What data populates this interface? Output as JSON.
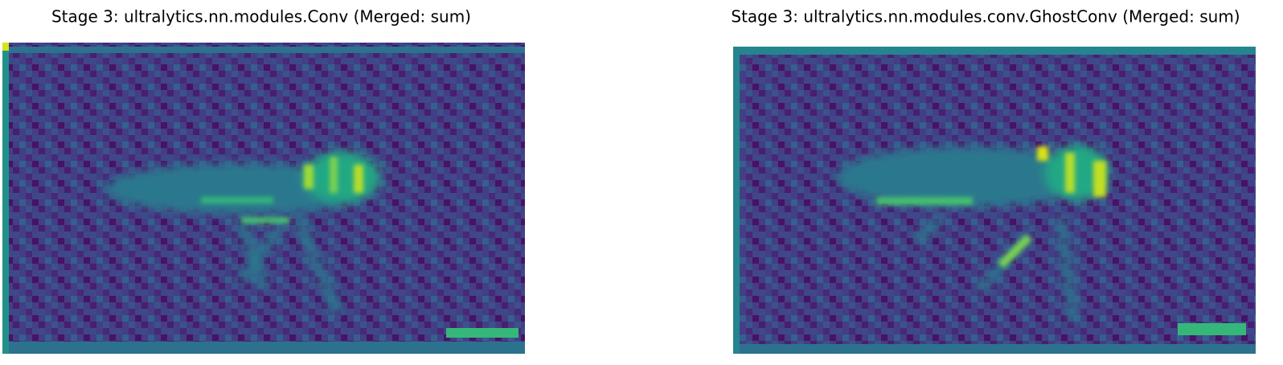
{
  "panels": [
    {
      "title": "Stage 3: ultralytics.nn.modules.Conv (Merged: sum)"
    },
    {
      "title": "Stage 3: ultralytics.nn.modules.conv.GhostConv (Merged: sum)"
    }
  ]
}
